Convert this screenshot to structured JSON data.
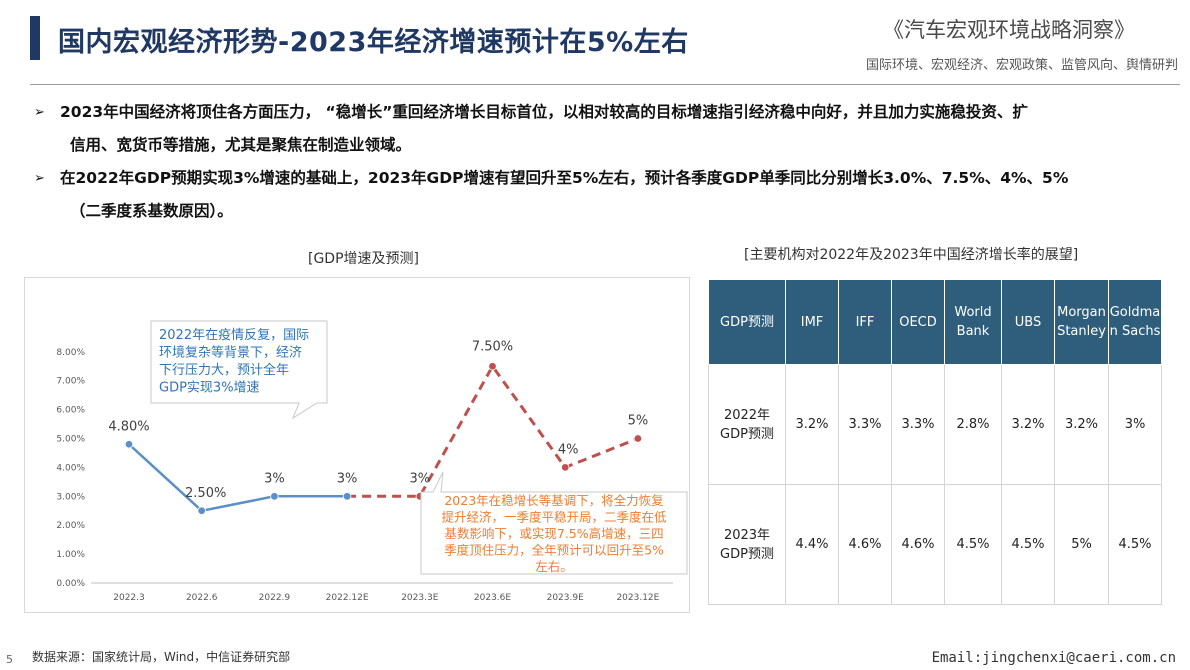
{
  "header": {
    "title": "国内宏观经济形势-2023年经济增速预计在5%左右",
    "right_title": "《汽车宏观环境战略洞察》",
    "right_subtitle": "国际环境、宏观经济、宏观政策、监管风向、舆情研判"
  },
  "bullets": {
    "items": [
      {
        "line1": "2023年中国经济将顶住各方面压力， “稳增长”重回经济增长目标首位，以相对较高的目标增速指引经济稳中向好，并且加力实施稳投资、扩",
        "line2": "信用、宽货币等措施，尤其是聚焦在制造业领域。"
      },
      {
        "line1": "在2022年GDP预期实现3%增速的基础上，2023年GDP增速有望回升至5%左右，预计各季度GDP单季同比分别增长3.0%、7.5%、4%、5%",
        "line2": "（二季度系基数原因）。"
      }
    ]
  },
  "chart_data": {
    "type": "line",
    "title": "[GDP增速及预测]",
    "categories": [
      "2022.3",
      "2022.6",
      "2022.9",
      "2022.12E",
      "2023.3E",
      "2023.6E",
      "2023.9E",
      "2023.12E"
    ],
    "series": [
      {
        "values": [
          4.8,
          2.5,
          3,
          3,
          null,
          null,
          null,
          null
        ],
        "style": "solid",
        "color": "#5b8fc9"
      },
      {
        "values": [
          null,
          null,
          null,
          3,
          3,
          7.5,
          4,
          5
        ],
        "style": "dashed",
        "color": "#c0504d"
      }
    ],
    "data_labels": [
      "4.80%",
      "2.50%",
      "3%",
      "3%",
      "3%",
      "7.50%",
      "4%",
      "5%"
    ],
    "y_ticks": [
      "0.00%",
      "1.00%",
      "2.00%",
      "3.00%",
      "4.00%",
      "5.00%",
      "6.00%",
      "7.00%",
      "8.00%"
    ],
    "ylim": [
      0,
      8
    ],
    "grid": false,
    "annotations": [
      {
        "lines": [
          "2022年在疫情反复，国际",
          "环境复杂等背景下，经济",
          "下行压力大，预计全年",
          "GDP实现3%增速"
        ],
        "color": "#2e75b6"
      },
      {
        "lines": [
          "2023年在稳增长等基调下，将全力恢复",
          "提升经济，一季度平稳开局，二季度在低",
          "基数影响下，或实现7.5%高增速，三四",
          "季度顶住压力，全年预计可以回升至5%",
          "左右。"
        ],
        "color": "#ed7d31"
      }
    ]
  },
  "table": {
    "title": "[主要机构对2022年及2023年中国经济增长率的展望]",
    "headers": [
      [
        "GDP预测"
      ],
      [
        "IMF"
      ],
      [
        "IFF"
      ],
      [
        "OECD"
      ],
      [
        "World",
        "Bank"
      ],
      [
        "UBS"
      ],
      [
        "Morgan",
        "Stanley"
      ],
      [
        "Goldma",
        "n Sachs"
      ]
    ],
    "rows": [
      {
        "label": [
          "2022年",
          "GDP预测"
        ],
        "values": [
          "3.2%",
          "3.3%",
          "3.3%",
          "2.8%",
          "3.2%",
          "3.2%",
          "3%"
        ]
      },
      {
        "label": [
          "2023年",
          "GDP预测"
        ],
        "values": [
          "4.4%",
          "4.6%",
          "4.6%",
          "4.5%",
          "4.5%",
          "5%",
          "4.5%"
        ]
      }
    ]
  },
  "footer": {
    "page_number": "5",
    "source": "数据来源：国家统计局，Wind，中信证券研究部",
    "email": "Email:jingchenxi@caeri.com.cn"
  },
  "colors": {
    "navy": "#1f3864",
    "header_teal": "#2e5e7c",
    "solid_line": "#5b8fc9",
    "dashed_line": "#c0504d"
  }
}
